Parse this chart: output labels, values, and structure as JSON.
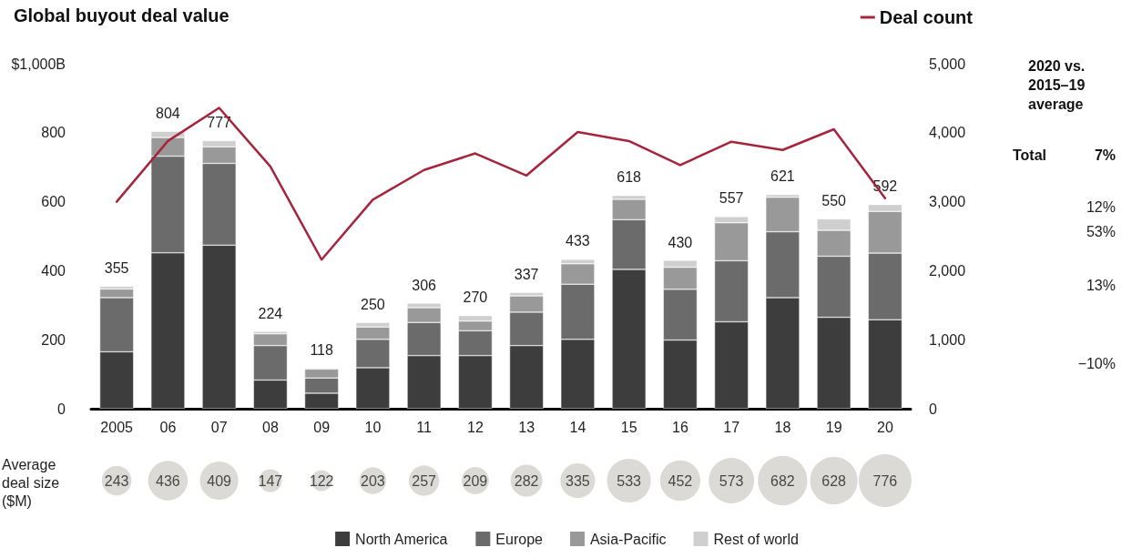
{
  "chart_data": [
    {
      "type": "bar",
      "title": "Global buyout deal value",
      "stacked": true,
      "legend": "bottom",
      "grid": false,
      "categories": [
        "2005",
        "06",
        "07",
        "08",
        "09",
        "10",
        "11",
        "12",
        "13",
        "14",
        "15",
        "16",
        "17",
        "18",
        "19",
        "20"
      ],
      "ylim": [
        0,
        1000
      ],
      "yticks": [
        0,
        200,
        400,
        600,
        800,
        {
          "value": 1000,
          "label": "$1,000B"
        }
      ],
      "y2lim": [
        0,
        5000
      ],
      "y2ticks": [
        0,
        {
          "value": 1000,
          "label": "1,000"
        },
        {
          "value": 2000,
          "label": "2,000"
        },
        {
          "value": 3000,
          "label": "3,000"
        },
        {
          "value": 4000,
          "label": "4,000"
        },
        {
          "value": 5000,
          "label": "5,000"
        }
      ],
      "series": [
        {
          "name": "North America",
          "color": "#3d3d3d",
          "values": [
            165,
            452,
            474,
            83,
            45,
            119,
            154,
            154,
            183,
            201,
            404,
            199,
            252,
            322,
            265,
            258
          ]
        },
        {
          "name": "Europe",
          "color": "#6b6b6b",
          "values": [
            157,
            280,
            237,
            100,
            44,
            82,
            96,
            72,
            97,
            160,
            144,
            147,
            177,
            191,
            177,
            193
          ]
        },
        {
          "name": "Asia-Pacific",
          "color": "#999999",
          "values": [
            25,
            54,
            48,
            34,
            26,
            36,
            43,
            28,
            47,
            59,
            59,
            64,
            110,
            100,
            75,
            121
          ]
        },
        {
          "name": "Rest of world",
          "color": "#cfcfcf",
          "values": [
            8,
            18,
            18,
            7,
            3,
            13,
            13,
            16,
            10,
            13,
            11,
            20,
            18,
            8,
            33,
            20
          ]
        },
        {
          "name": "Deal count",
          "type": "line",
          "axis": "y2",
          "color": "#a6243c",
          "marker": "none",
          "line_style": "solid",
          "values": [
            3000,
            3880,
            4360,
            3510,
            2160,
            3030,
            3460,
            3700,
            3380,
            4010,
            3880,
            3530,
            3870,
            3750,
            4050,
            3050
          ]
        }
      ],
      "totals": [
        "355",
        "804",
        "777",
        "224",
        "118",
        "250",
        "306",
        "270",
        "337",
        "433",
        "618",
        "430",
        "557",
        "621",
        "550",
        "592"
      ],
      "annotations": [
        "2020 vs. 2015–19 average",
        "Total",
        "7%",
        "12%",
        "53%",
        "13%",
        "−10%"
      ]
    },
    {
      "type": "other",
      "ylabel": "Average deal size ($M)",
      "color": "#d3d1cc",
      "data_labels": true,
      "categories": [
        null,
        null,
        null,
        null,
        null,
        null,
        null,
        null,
        null,
        null,
        null,
        null,
        null,
        null,
        null,
        null
      ],
      "values": [
        243,
        436,
        409,
        147,
        122,
        203,
        257,
        209,
        282,
        335,
        533,
        452,
        573,
        682,
        628,
        776
      ]
    }
  ]
}
